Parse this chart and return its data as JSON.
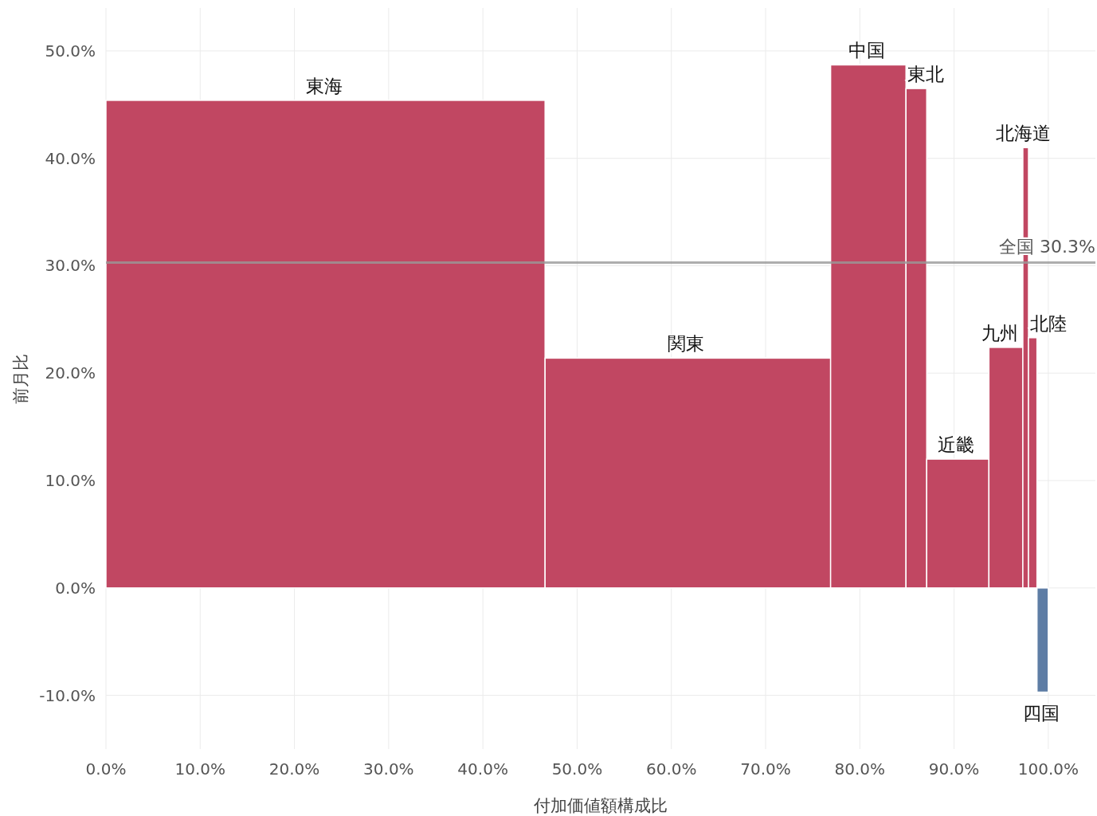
{
  "chart_data": {
    "type": "histogram",
    "xlabel": "付加価値額構成比",
    "ylabel": "前月比",
    "annotations": [
      {
        "text": "東海",
        "x": 23.3,
        "y": 45.4
      },
      {
        "text": "関東",
        "x": 61.75,
        "y": 21.4
      },
      {
        "text": "中国",
        "x": 80.9,
        "y": 48.7
      },
      {
        "text": "東北",
        "x": 86.0,
        "y": 46.5
      },
      {
        "text": "近畿",
        "x": 90.4,
        "y": 12.0
      },
      {
        "text": "九州",
        "x": 95.5,
        "y": 22.4
      },
      {
        "text": "北海道",
        "x": 97.6,
        "y": 41.0
      },
      {
        "text": "北陸",
        "x": 98.35,
        "y": 23.3
      },
      {
        "text": "四国",
        "x": 99.4,
        "y": -9.7
      }
    ],
    "bins": [
      0,
      46.6,
      76.9,
      84.9,
      87.1,
      93.7,
      97.3,
      97.9,
      98.8,
      100
    ],
    "values": [
      45.4,
      21.4,
      48.7,
      46.5,
      12.0,
      22.4,
      41.0,
      23.3,
      -9.7
    ],
    "colors": [
      "#c0435f",
      "#c0435f",
      "#c0435f",
      "#c0435f",
      "#c0435f",
      "#c0435f",
      "#c0435f",
      "#c0435f",
      "#5b7aa3"
    ],
    "xlim": [
      0,
      105
    ],
    "ylim": [
      -15,
      54
    ],
    "xticks": [
      {
        "value": 0,
        "label": "0.0%"
      },
      {
        "value": 10,
        "label": "10.0%"
      },
      {
        "value": 20,
        "label": "20.0%"
      },
      {
        "value": 30,
        "label": "30.0%"
      },
      {
        "value": 40,
        "label": "40.0%"
      },
      {
        "value": 50,
        "label": "50.0%"
      },
      {
        "value": 60,
        "label": "60.0%"
      },
      {
        "value": 70,
        "label": "70.0%"
      },
      {
        "value": 80,
        "label": "80.0%"
      },
      {
        "value": 90,
        "label": "90.0%"
      },
      {
        "value": 100,
        "label": "100.0%"
      }
    ],
    "yticks": [
      {
        "value": -10,
        "label": "-10.0%"
      },
      {
        "value": 0,
        "label": "0.0%"
      },
      {
        "value": 10,
        "label": "10.0%"
      },
      {
        "value": 20,
        "label": "20.0%"
      },
      {
        "value": 30,
        "label": "30.0%"
      },
      {
        "value": 40,
        "label": "40.0%"
      },
      {
        "value": 50,
        "label": "50.0%"
      }
    ],
    "ref_lines": [
      {
        "axis": "y",
        "value": 30.3,
        "label": "全国 30.3%",
        "color": "#999999"
      }
    ],
    "grid": true
  }
}
